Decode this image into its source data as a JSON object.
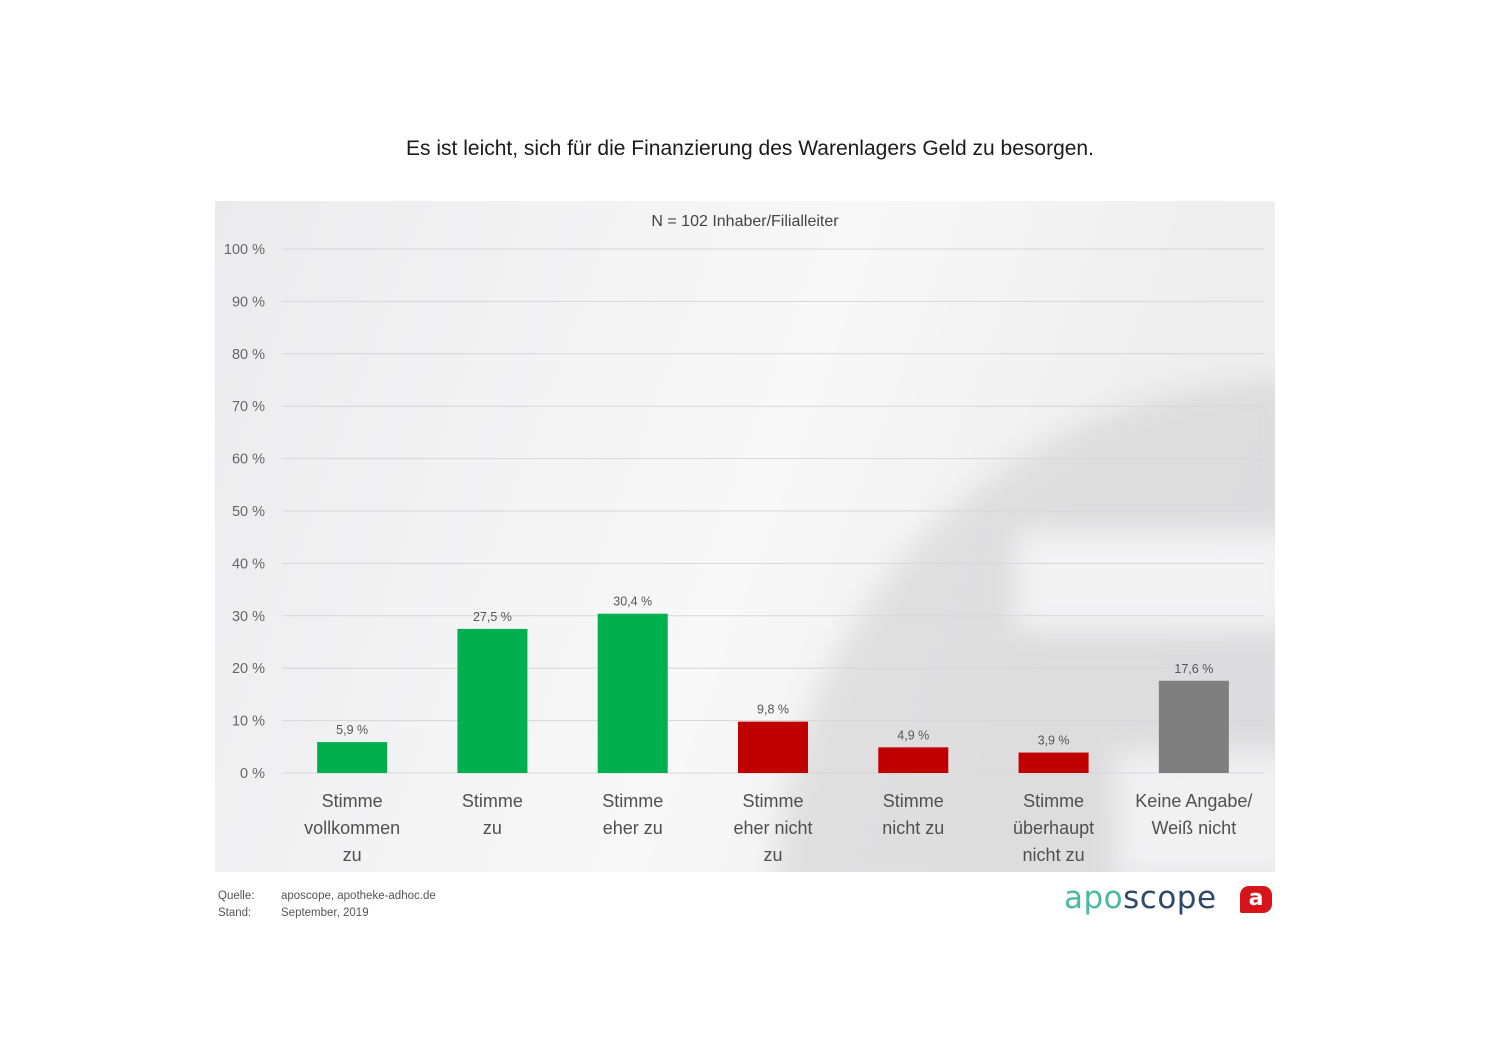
{
  "chart_data": {
    "type": "bar",
    "title": "Es ist leicht, sich für die Finanzierung des Warenlagers Geld zu besorgen.",
    "subtitle": "N = 102 Inhaber/Filialleiter",
    "xlabel": "",
    "ylabel": "",
    "ylim": [
      0,
      100
    ],
    "yticks": [
      0,
      10,
      20,
      30,
      40,
      50,
      60,
      70,
      80,
      90,
      100
    ],
    "ytick_labels": [
      "0 %",
      "10 %",
      "20 %",
      "30 %",
      "40 %",
      "50 %",
      "60 %",
      "70 %",
      "80 %",
      "90 %",
      "100 %"
    ],
    "grid": true,
    "legend": "none",
    "categories": [
      [
        "Stimme",
        "vollkommen",
        "zu"
      ],
      [
        "Stimme",
        "zu"
      ],
      [
        "Stimme",
        "eher zu"
      ],
      [
        "Stimme",
        "eher nicht",
        "zu"
      ],
      [
        "Stimme",
        "nicht zu"
      ],
      [
        "Stimme",
        "überhaupt",
        "nicht zu"
      ],
      [
        "Keine Angabe/",
        "Weiß nicht"
      ]
    ],
    "values": [
      5.9,
      27.5,
      30.4,
      9.8,
      4.9,
      3.9,
      17.6
    ],
    "data_labels": [
      "5,9 %",
      "27,5 %",
      "30,4 %",
      "9,8 %",
      "4,9 %",
      "3,9 %",
      "17,6 %"
    ],
    "colors": [
      "#00b04f",
      "#00b04f",
      "#00b04f",
      "#c00000",
      "#c00000",
      "#c00000",
      "#7f7f7f"
    ]
  },
  "footer": {
    "source_label": "Quelle:",
    "source_value": "aposcope, apotheke-adhoc.de",
    "date_label": "Stand:",
    "date_value": "September, 2019"
  },
  "branding": {
    "logo_part1": "apo",
    "logo_part2": "scope",
    "badge_letter": "a"
  }
}
